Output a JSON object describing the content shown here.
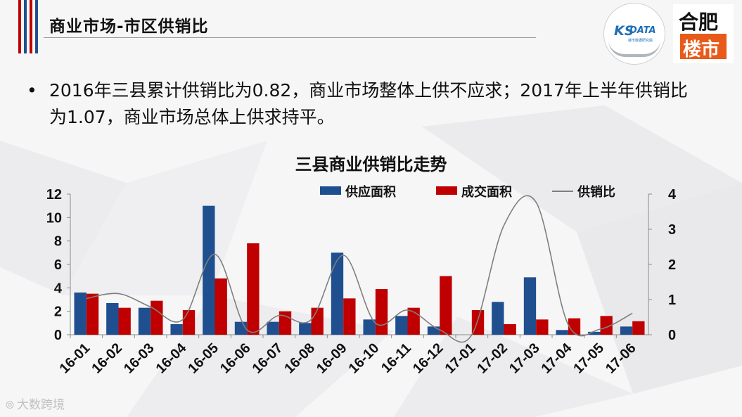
{
  "header": {
    "title": "商业市场-市区供销比",
    "logos": {
      "ksdata_main": "KS",
      "ksdata_text": "DATA",
      "ksdata_sub": "楼市数据研究院",
      "hefei_top": "合肥",
      "hefei_bottom": "楼市"
    },
    "accent_colors": {
      "blue": "#1f4f8f",
      "red": "#c00000"
    }
  },
  "bullet": {
    "symbol": "•",
    "text": "2016年三县累计供销比为0.82，商业市场整体上供不应求；2017年上半年供销比为1.07，商业市场总体上供求持平。"
  },
  "watermark": {
    "icon": "大数跨境-icon",
    "text": "大数跨境"
  },
  "chart_data": {
    "type": "bar",
    "title": "三县商业供销比走势",
    "categories": [
      "16-01",
      "16-02",
      "16-03",
      "16-04",
      "16-05",
      "16-06",
      "16-07",
      "16-08",
      "16-09",
      "16-10",
      "16-11",
      "16-12",
      "17-01",
      "17-02",
      "17-03",
      "17-04",
      "17-05",
      "17-06"
    ],
    "series": [
      {
        "name": "供应面积",
        "type": "bar",
        "axis": "left",
        "color": "#1f4f8f",
        "values": [
          3.6,
          2.7,
          2.3,
          0.9,
          11.0,
          1.1,
          1.1,
          1.0,
          7.0,
          1.3,
          1.6,
          0.7,
          0,
          2.8,
          4.9,
          0.4,
          0.25,
          0.7
        ]
      },
      {
        "name": "成交面积",
        "type": "bar",
        "axis": "left",
        "color": "#c00000",
        "values": [
          3.5,
          2.3,
          2.9,
          2.1,
          4.8,
          7.8,
          2.0,
          2.3,
          3.1,
          3.9,
          2.3,
          5.0,
          2.1,
          0.9,
          1.3,
          1.4,
          1.6,
          1.15
        ]
      },
      {
        "name": "供销比",
        "type": "line",
        "axis": "right",
        "color": "#7f7f7f",
        "values": [
          1.03,
          1.17,
          0.79,
          0.43,
          2.29,
          0.14,
          0.55,
          0.43,
          2.26,
          0.33,
          0.7,
          0.14,
          0,
          3.11,
          3.77,
          0.29,
          0.16,
          0.61
        ]
      }
    ],
    "left_axis": {
      "ylim": [
        0,
        12
      ],
      "ticks": [
        "0",
        "2",
        "4",
        "6",
        "8",
        "10",
        "12"
      ]
    },
    "right_axis": {
      "ylim": [
        0,
        4
      ],
      "ticks": [
        "0",
        "1",
        "2",
        "3",
        "4"
      ]
    },
    "legend": "top-right",
    "grid": false
  }
}
